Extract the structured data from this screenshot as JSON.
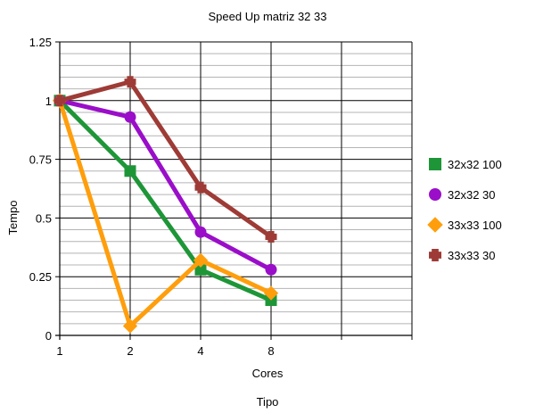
{
  "chart_data": {
    "type": "line",
    "title": "Speed Up matriz 32 33",
    "xlabel": "Cores",
    "footer_label": "Tipo",
    "ylabel": "Tempo",
    "categories": [
      "1",
      "2",
      "4",
      "8"
    ],
    "xlim_extra_category": true,
    "ylim": [
      0,
      1.25
    ],
    "y_ticks": [
      "0",
      "0.25",
      "0.5",
      "0.75",
      "1",
      "1.25"
    ],
    "grid": {
      "major": true,
      "minor": true
    },
    "legend_position": "right",
    "series": [
      {
        "name": "32x32 100",
        "color": "#1e9638",
        "marker": "square",
        "values": [
          1,
          0.7,
          0.28,
          0.15
        ]
      },
      {
        "name": "32x32 30",
        "color": "#9a0ec9",
        "marker": "circle",
        "values": [
          1,
          0.93,
          0.44,
          0.28
        ]
      },
      {
        "name": "33x33 100",
        "color": "#ff9e0c",
        "marker": "diamond",
        "values": [
          1,
          0.04,
          0.32,
          0.18
        ]
      },
      {
        "name": "33x33 30",
        "color": "#9e3b36",
        "marker": "plus",
        "values": [
          1,
          1.08,
          0.63,
          0.42
        ]
      }
    ]
  }
}
